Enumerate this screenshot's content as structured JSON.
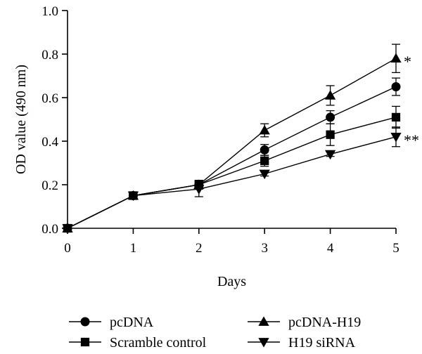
{
  "chart_data": {
    "type": "line",
    "title": "",
    "xlabel": "Days",
    "ylabel": "OD value (490 nm)",
    "x": [
      0,
      1,
      2,
      3,
      4,
      5
    ],
    "xlim": [
      0,
      5
    ],
    "ylim": [
      0,
      1.0
    ],
    "xticks": [
      "0",
      "1",
      "2",
      "3",
      "4",
      "5"
    ],
    "yticks": [
      "0.0",
      "0.2",
      "0.4",
      "0.6",
      "0.8",
      "1.0"
    ],
    "grid": false,
    "legend_position": "bottom",
    "series": [
      {
        "name": "pcDNA",
        "marker": "circle",
        "values": [
          0,
          0.15,
          0.2,
          0.36,
          0.51,
          0.65
        ],
        "errors": [
          0,
          0.01,
          0.02,
          0.025,
          0.03,
          0.04
        ]
      },
      {
        "name": "Scramble control",
        "marker": "square",
        "values": [
          0,
          0.15,
          0.2,
          0.31,
          0.43,
          0.51
        ],
        "errors": [
          0,
          0.01,
          0.02,
          0.025,
          0.05,
          0.05
        ]
      },
      {
        "name": "pcDNA-H19",
        "marker": "triangle-up",
        "values": [
          0,
          0.15,
          0.2,
          0.45,
          0.61,
          0.78
        ],
        "errors": [
          0,
          0.01,
          0.02,
          0.03,
          0.045,
          0.065
        ]
      },
      {
        "name": "H19 siRNA",
        "marker": "triangle-down",
        "values": [
          0,
          0.15,
          0.18,
          0.25,
          0.34,
          0.42
        ],
        "errors": [
          0,
          0.01,
          0.035,
          0.01,
          0.01,
          0.045
        ]
      }
    ],
    "annotations": [
      {
        "text": "*",
        "series": "pcDNA-H19",
        "x": 5
      },
      {
        "text": "**",
        "series": "H19 siRNA",
        "x": 5
      }
    ]
  }
}
